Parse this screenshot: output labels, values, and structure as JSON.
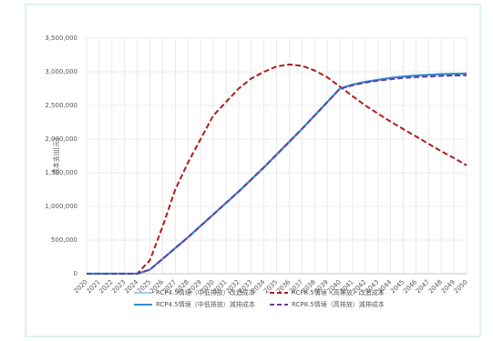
{
  "chart_data": {
    "type": "line",
    "y_label": "成本支出[元]",
    "categories": [
      "2020",
      "2021",
      "2022",
      "2023",
      "2024",
      "2025",
      "2026",
      "2027",
      "2028",
      "2029",
      "2030",
      "2031",
      "2032",
      "2033",
      "2034",
      "2035",
      "2036",
      "2037",
      "2038",
      "2039",
      "2040",
      "2041",
      "2042",
      "2043",
      "2044",
      "2045",
      "2046",
      "2047",
      "2048",
      "2049",
      "2050"
    ],
    "series": [
      {
        "name": "RCP4.5情境（中低排放）改造成本",
        "color": "#a9c9ea",
        "dash": false,
        "values": [
          0,
          0,
          0,
          0,
          0,
          60000,
          220000,
          380000,
          540000,
          710000,
          880000,
          1050000,
          1220000,
          1400000,
          1580000,
          1770000,
          1960000,
          2150000,
          2350000,
          2550000,
          2750000,
          2810000,
          2850000,
          2880000,
          2910000,
          2930000,
          2945000,
          2955000,
          2965000,
          2970000,
          2975000
        ]
      },
      {
        "name": "RCP8.5情境（高排放）改造成本",
        "color": "#b01c1c",
        "dash": true,
        "values": [
          0,
          0,
          0,
          0,
          0,
          200000,
          700000,
          1250000,
          1650000,
          2000000,
          2350000,
          2550000,
          2750000,
          2900000,
          3000000,
          3080000,
          3110000,
          3090000,
          3020000,
          2920000,
          2780000,
          2640000,
          2500000,
          2380000,
          2260000,
          2150000,
          2040000,
          1930000,
          1820000,
          1720000,
          1610000
        ]
      },
      {
        "name": "RCP4.5情境（中低排放）減排成本",
        "color": "#2e8fd6",
        "dash": false,
        "values": [
          0,
          0,
          0,
          0,
          0,
          60000,
          220000,
          380000,
          540000,
          710000,
          880000,
          1050000,
          1220000,
          1400000,
          1580000,
          1770000,
          1960000,
          2150000,
          2350000,
          2550000,
          2750000,
          2810000,
          2850000,
          2880000,
          2910000,
          2930000,
          2945000,
          2955000,
          2965000,
          2970000,
          2975000
        ]
      },
      {
        "name": "RCP8.5情境（高排放）減排成本",
        "color": "#6a3d9a",
        "dash": true,
        "values": [
          0,
          0,
          0,
          0,
          0,
          60000,
          220000,
          380000,
          540000,
          710000,
          880000,
          1050000,
          1220000,
          1400000,
          1580000,
          1770000,
          1960000,
          2150000,
          2350000,
          2550000,
          2750000,
          2800000,
          2840000,
          2870000,
          2890000,
          2910000,
          2920000,
          2930000,
          2940000,
          2945000,
          2950000
        ]
      }
    ],
    "ylim": [
      0,
      3500000
    ],
    "yticks": [
      0,
      {
        "value": 500000,
        "label": "500,000"
      },
      {
        "value": 1000000,
        "label": "1,000,000"
      },
      {
        "value": 1500000,
        "label": "1,500,000"
      },
      {
        "value": 2000000,
        "label": "2,000,000"
      },
      {
        "value": 2500000,
        "label": "2,500,000"
      },
      {
        "value": 3000000,
        "label": "3,000,000"
      },
      {
        "value": 3500000,
        "label": "3,500,000"
      }
    ],
    "grid": true
  }
}
